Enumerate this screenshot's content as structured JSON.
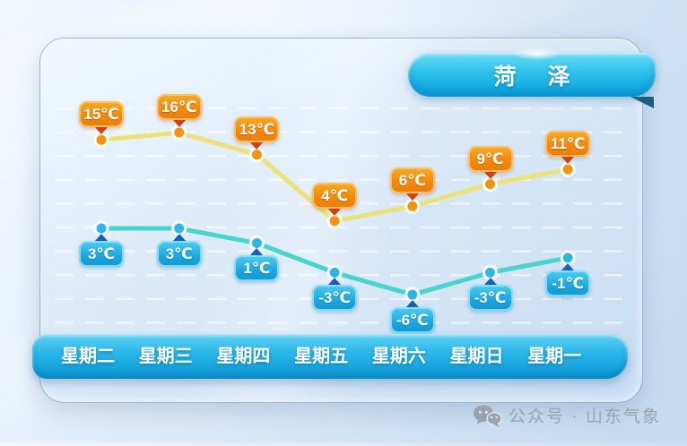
{
  "header": {
    "city": "菏 泽"
  },
  "footer": {
    "text": "公众号 · 山东气象"
  },
  "chart_data": {
    "type": "line",
    "title": "菏 泽",
    "categories": [
      "星期二",
      "星期三",
      "星期四",
      "星期五",
      "星期六",
      "星期日",
      "星期一"
    ],
    "series": [
      {
        "name": "high",
        "values": [
          15,
          16,
          13,
          4,
          6,
          9,
          11
        ],
        "labels": [
          "15℃",
          "16℃",
          "13℃",
          "4℃",
          "6℃",
          "9℃",
          "11℃"
        ],
        "line_color": "#ebe171",
        "point_color": "#f5930e",
        "bubble_color": "#f08a0e",
        "pointer_color": "#cf3e17"
      },
      {
        "name": "low",
        "values": [
          3,
          3,
          1,
          -3,
          -6,
          -3,
          -1
        ],
        "labels": [
          "3℃",
          "3℃",
          "1℃",
          "-3℃",
          "-6℃",
          "-3℃",
          "-1℃"
        ],
        "line_color": "#3fd3cb",
        "point_color": "#2cb7e6",
        "bubble_color": "#1ca7dd",
        "pointer_color": "#1560bd"
      }
    ],
    "unit": "℃",
    "y_range_hint": [
      -6,
      16
    ],
    "xlabel": "",
    "ylabel": "",
    "grid": {
      "horizontal_dashed_lines": 10,
      "color": "#ffffff"
    },
    "legend": "none",
    "accent_colors": {
      "ribbon": "#0aa2de",
      "daybar": "#0c98d6",
      "background": "#d5e5f5"
    }
  }
}
